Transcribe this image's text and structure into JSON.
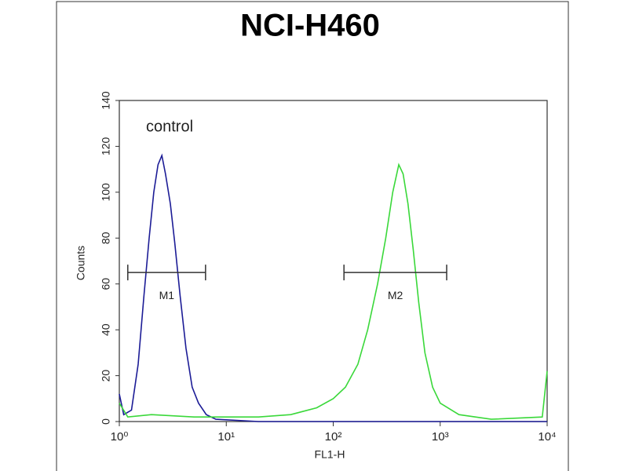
{
  "chart_data": {
    "type": "histogram-overlay",
    "title": "NCI-H460",
    "x_label": "FL1-H",
    "y_label": "Counts",
    "annotation": "control",
    "xscale": "log",
    "xlim": [
      1,
      10000
    ],
    "ylim": [
      0,
      140
    ],
    "xticks": [
      {
        "value": 1,
        "label": "10⁰"
      },
      {
        "value": 10,
        "label": "10¹"
      },
      {
        "value": 100,
        "label": "10²"
      },
      {
        "value": 1000,
        "label": "10³"
      },
      {
        "value": 10000,
        "label": "10⁴"
      }
    ],
    "yticks": [
      0,
      20,
      40,
      60,
      80,
      100,
      120,
      140
    ],
    "series": [
      {
        "color": "#1c1c96",
        "x": [
          1,
          1.1,
          1.3,
          1.5,
          1.7,
          1.9,
          2.1,
          2.3,
          2.5,
          2.7,
          3.0,
          3.3,
          3.7,
          4.2,
          4.8,
          5.5,
          6.5,
          8,
          20,
          100,
          1000,
          10000
        ],
        "values": [
          12,
          3,
          5,
          25,
          55,
          80,
          100,
          112,
          116,
          108,
          95,
          78,
          55,
          32,
          15,
          8,
          3,
          1,
          0,
          0,
          0,
          0
        ]
      },
      {
        "color": "#3ad83a",
        "x": [
          1,
          1.2,
          2,
          5,
          10,
          20,
          40,
          70,
          100,
          130,
          170,
          210,
          260,
          310,
          360,
          410,
          450,
          500,
          560,
          630,
          720,
          850,
          1000,
          1500,
          3000,
          9000,
          10000
        ],
        "values": [
          8,
          2,
          3,
          2,
          2,
          2,
          3,
          6,
          10,
          15,
          25,
          40,
          60,
          80,
          100,
          112,
          108,
          95,
          75,
          52,
          30,
          15,
          8,
          3,
          1,
          2,
          22
        ]
      }
    ],
    "markers": [
      {
        "label": "M1",
        "range": [
          1.2,
          6.4
        ],
        "y": 65
      },
      {
        "label": "M2",
        "range": [
          126,
          1150
        ],
        "y": 65
      }
    ]
  }
}
